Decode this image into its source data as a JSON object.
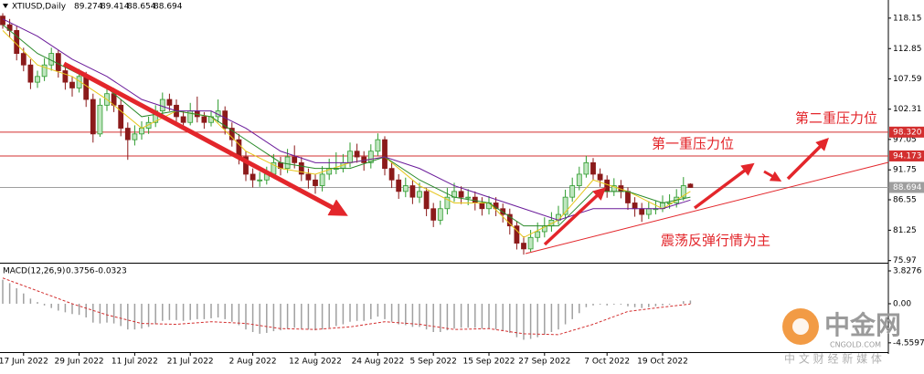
{
  "chart_data": {
    "type": "candlestick",
    "symbol_label": "XTIUSD,Daily",
    "indicator_label": "MACD(12,26,9)",
    "up_color": "#2e9b2e",
    "down_color": "#8b1a1a",
    "categories": [
      null,
      null,
      null,
      "17 Jun 2022",
      null,
      null,
      null,
      null,
      null,
      null,
      null,
      "29 Jun 2022",
      null,
      null,
      null,
      null,
      null,
      null,
      null,
      "11 Jul 2022",
      null,
      null,
      null,
      null,
      null,
      null,
      null,
      "21 Jul 2022",
      null,
      null,
      null,
      null,
      null,
      null,
      null,
      null,
      "2 Aug 2022",
      null,
      null,
      null,
      null,
      null,
      null,
      null,
      null,
      "12 Aug 2022",
      null,
      null,
      null,
      null,
      null,
      null,
      null,
      null,
      "24 Aug 2022",
      null,
      null,
      null,
      null,
      null,
      null,
      null,
      "5 Sep 2022",
      null,
      null,
      null,
      null,
      null,
      null,
      null,
      "15 Sep 2022",
      null,
      null,
      null,
      null,
      null,
      null,
      null,
      "27 Sep 2022",
      null,
      null,
      null,
      null,
      null,
      null,
      null,
      null,
      "7 Oct 2022",
      null,
      null,
      null,
      null,
      null,
      null,
      null,
      "19 Oct 2022",
      null,
      null,
      null,
      null
    ],
    "candles": [
      [
        118.5,
        119,
        116.3,
        117
      ],
      [
        117,
        118,
        114.8,
        116
      ],
      [
        116,
        116.8,
        110.8,
        112
      ],
      [
        112,
        113,
        108.9,
        110
      ],
      [
        110,
        111,
        105.8,
        107
      ],
      [
        107,
        109,
        106,
        108
      ],
      [
        108,
        111.2,
        107.2,
        110
      ],
      [
        110,
        113,
        109,
        112
      ],
      [
        112,
        112.6,
        107.8,
        109
      ],
      [
        109,
        110,
        105.7,
        107
      ],
      [
        107,
        108,
        104.5,
        106
      ],
      [
        106,
        109.3,
        105.2,
        108
      ],
      [
        108,
        108.8,
        102.7,
        104
      ],
      [
        104,
        105,
        96.5,
        98
      ],
      [
        98,
        104.2,
        97.5,
        103
      ],
      [
        103,
        106.4,
        102,
        105
      ],
      [
        105,
        106,
        101.8,
        103
      ],
      [
        103,
        104,
        97.6,
        99
      ],
      [
        99,
        100,
        93.5,
        97
      ],
      [
        97,
        99.5,
        96,
        98
      ],
      [
        98,
        100.2,
        97,
        99
      ],
      [
        99,
        101,
        98,
        100
      ],
      [
        100,
        103,
        99.2,
        102
      ],
      [
        102,
        105.2,
        101,
        104
      ],
      [
        104,
        105,
        102,
        103
      ],
      [
        103,
        104,
        100,
        101
      ],
      [
        101,
        102,
        98.8,
        100
      ],
      [
        100,
        103.4,
        99.5,
        102
      ],
      [
        102,
        104.5,
        100,
        101
      ],
      [
        101,
        101.8,
        98.9,
        100
      ],
      [
        100,
        102,
        99.3,
        101
      ],
      [
        101,
        104,
        100,
        102
      ],
      [
        102,
        102.8,
        97.9,
        99
      ],
      [
        99,
        100,
        95.8,
        97
      ],
      [
        97,
        98,
        92.7,
        94
      ],
      [
        94,
        95,
        89.8,
        91
      ],
      [
        91,
        92,
        88.7,
        90
      ],
      [
        90,
        91.4,
        88.8,
        90
      ],
      [
        90,
        92.3,
        89.2,
        91
      ],
      [
        91,
        94.5,
        90.3,
        93
      ],
      [
        93,
        94,
        90.8,
        92
      ],
      [
        92,
        95.4,
        91.2,
        94
      ],
      [
        94,
        96,
        92,
        93
      ],
      [
        93,
        94,
        89.8,
        91
      ],
      [
        91,
        92,
        88.5,
        90
      ],
      [
        90,
        91,
        87.6,
        89
      ],
      [
        89,
        92.4,
        88,
        91
      ],
      [
        91,
        93.7,
        90,
        92
      ],
      [
        92,
        94.8,
        91,
        92
      ],
      [
        92,
        94.5,
        91.3,
        93
      ],
      [
        93,
        96.5,
        92.2,
        95
      ],
      [
        95,
        96.3,
        93,
        94
      ],
      [
        94,
        95,
        91.6,
        93
      ],
      [
        93,
        96.2,
        92,
        95
      ],
      [
        95,
        98.1,
        94.2,
        97
      ],
      [
        97,
        97.6,
        90.8,
        92
      ],
      [
        92,
        93,
        88.6,
        90
      ],
      [
        90,
        91,
        86.7,
        88
      ],
      [
        88,
        90.4,
        87,
        89
      ],
      [
        89,
        89.9,
        85.8,
        87
      ],
      [
        87,
        89.5,
        86,
        88
      ],
      [
        88,
        88.6,
        83.7,
        85
      ],
      [
        85,
        86,
        81.8,
        83
      ],
      [
        83,
        86.4,
        82.2,
        85
      ],
      [
        85,
        88.6,
        84,
        87
      ],
      [
        87,
        89.5,
        86.2,
        88
      ],
      [
        88,
        88.9,
        85.8,
        87
      ],
      [
        87,
        88.4,
        85.6,
        87
      ],
      [
        87,
        88,
        84.7,
        86
      ],
      [
        86,
        87,
        83.8,
        85
      ],
      [
        85,
        87.2,
        84,
        86
      ],
      [
        86,
        87,
        83.7,
        85
      ],
      [
        85,
        85.9,
        82.6,
        84
      ],
      [
        84,
        85,
        80.5,
        82
      ],
      [
        82,
        82.8,
        77.9,
        79
      ],
      [
        79,
        80.2,
        77,
        78
      ],
      [
        78,
        81.3,
        77.5,
        80
      ],
      [
        80,
        82.6,
        79.2,
        81
      ],
      [
        81,
        83.5,
        80,
        82
      ],
      [
        82,
        84.4,
        81,
        83
      ],
      [
        83,
        85.5,
        82.2,
        84
      ],
      [
        84,
        88.3,
        83.4,
        87
      ],
      [
        87,
        90.4,
        86.2,
        89
      ],
      [
        89,
        92.3,
        88.2,
        91
      ],
      [
        91,
        94.2,
        90.4,
        93
      ],
      [
        93,
        93.8,
        90,
        91
      ],
      [
        91,
        92,
        88.8,
        90
      ],
      [
        90,
        90.8,
        86.9,
        88
      ],
      [
        88,
        90.3,
        87.2,
        89
      ],
      [
        89,
        90,
        86.8,
        88
      ],
      [
        88,
        88.7,
        84.8,
        86
      ],
      [
        86,
        87,
        83.6,
        85
      ],
      [
        85,
        86,
        82.7,
        84
      ],
      [
        84,
        86.3,
        83.2,
        85
      ],
      [
        85,
        86.4,
        84,
        85
      ],
      [
        85,
        87.3,
        84.4,
        86
      ],
      [
        86,
        87.5,
        85,
        86
      ],
      [
        86,
        88.4,
        85.2,
        87
      ],
      [
        87,
        90.5,
        86.4,
        89
      ],
      [
        89.274,
        89.414,
        88.654,
        88.694
      ]
    ],
    "ma_x": [
      0,
      5,
      10,
      15,
      20,
      25,
      30,
      35,
      40,
      45,
      50,
      55,
      60,
      65,
      70,
      75,
      80,
      85,
      90,
      95,
      99
    ],
    "ma_series": [
      {
        "color": "#e6c619",
        "values": [
          116,
          110,
          108,
          104,
          99,
          102,
          101,
          95,
          92,
          91,
          93,
          94,
          89,
          86,
          86,
          80,
          83,
          90,
          88,
          85,
          88
        ]
      },
      {
        "color": "#2a8a2a",
        "values": [
          117,
          112,
          109,
          106,
          101,
          102,
          101,
          97,
          93,
          92,
          92,
          94,
          90,
          87,
          86,
          82,
          82,
          88,
          88,
          86,
          87
        ]
      },
      {
        "color": "#6a1b9a",
        "values": [
          118,
          115,
          111,
          108,
          104,
          102,
          102,
          99,
          95,
          93,
          93,
          94,
          92,
          89,
          87,
          85,
          83,
          85,
          85,
          85,
          86.5
        ]
      }
    ],
    "ylim": [
      75.6,
      121.3
    ],
    "yticks": [
      118.15,
      112.85,
      107.59,
      102.31,
      97.05,
      91.75,
      86.55,
      81.25,
      75.97
    ],
    "levels": [
      {
        "value": 98.32,
        "label": "98.320",
        "color": "#d32f2f"
      },
      {
        "value": 94.173,
        "label": "94.173",
        "color": "#d32f2f"
      },
      {
        "value": 88.694,
        "label": "88.694",
        "color": "#9e9e9e"
      }
    ],
    "macd_histogram": {
      "color": "#a0a0a0",
      "values": [
        2.8,
        2.4,
        1.8,
        1.2,
        0.6,
        0.2,
        -0.2,
        -0.5,
        -0.8,
        -1.0,
        -1.2,
        -1.3,
        -1.6,
        -2.2,
        -2.3,
        -2.2,
        -2.3,
        -2.6,
        -3.0,
        -3.0,
        -2.9,
        -2.7,
        -2.4,
        -2.0,
        -1.9,
        -1.9,
        -2.0,
        -1.9,
        -1.8,
        -1.8,
        -1.7,
        -1.6,
        -1.8,
        -2.1,
        -2.5,
        -3.0,
        -3.3,
        -3.5,
        -3.4,
        -3.2,
        -3.1,
        -2.9,
        -2.8,
        -2.9,
        -3.0,
        -3.1,
        -3.0,
        -2.8,
        -2.6,
        -2.4,
        -2.1,
        -2.0,
        -2.0,
        -1.8,
        -1.5,
        -1.8,
        -2.1,
        -2.4,
        -2.5,
        -2.7,
        -2.7,
        -3.0,
        -3.3,
        -3.3,
        -3.1,
        -2.9,
        -2.8,
        -2.8,
        -2.8,
        -2.9,
        -2.9,
        -3.0,
        -3.1,
        -3.4,
        -3.9,
        -4.2,
        -4.1,
        -3.9,
        -3.6,
        -3.3,
        -3.0,
        -2.4,
        -1.8,
        -1.1,
        -0.4,
        -0.2,
        -0.1,
        -0.2,
        -0.1,
        -0.1,
        -0.3,
        -0.4,
        -0.5,
        -0.4,
        -0.3,
        -0.2,
        -0.1,
        0.0,
        0.3,
        0.3756
      ]
    },
    "macd_signal": {
      "color": "#d32f2f",
      "x": [
        0,
        5,
        10,
        15,
        20,
        25,
        30,
        35,
        40,
        45,
        50,
        55,
        60,
        65,
        70,
        75,
        80,
        85,
        90,
        95,
        99
      ],
      "values": [
        3.0,
        1.5,
        0,
        -1.3,
        -2.3,
        -2.4,
        -2.1,
        -2.3,
        -2.9,
        -3.0,
        -2.7,
        -2.1,
        -2.4,
        -3.0,
        -2.9,
        -3.5,
        -3.6,
        -2.4,
        -0.9,
        -0.4,
        -0.0323
      ]
    },
    "y2lim": [
      -5.64,
      4.57
    ],
    "y2ticks": [
      3.8276,
      {
        "value": 0,
        "label": "0.00"
      },
      -4.5597
    ],
    "annotations": [
      "第二重压力位",
      "第一重压力位",
      "震荡反弹行情为主"
    ],
    "watermark": {
      "brand": "中金网",
      "site": "CNGOLD.COM",
      "slogan": "中 文 财 经 新 媒 体"
    }
  }
}
